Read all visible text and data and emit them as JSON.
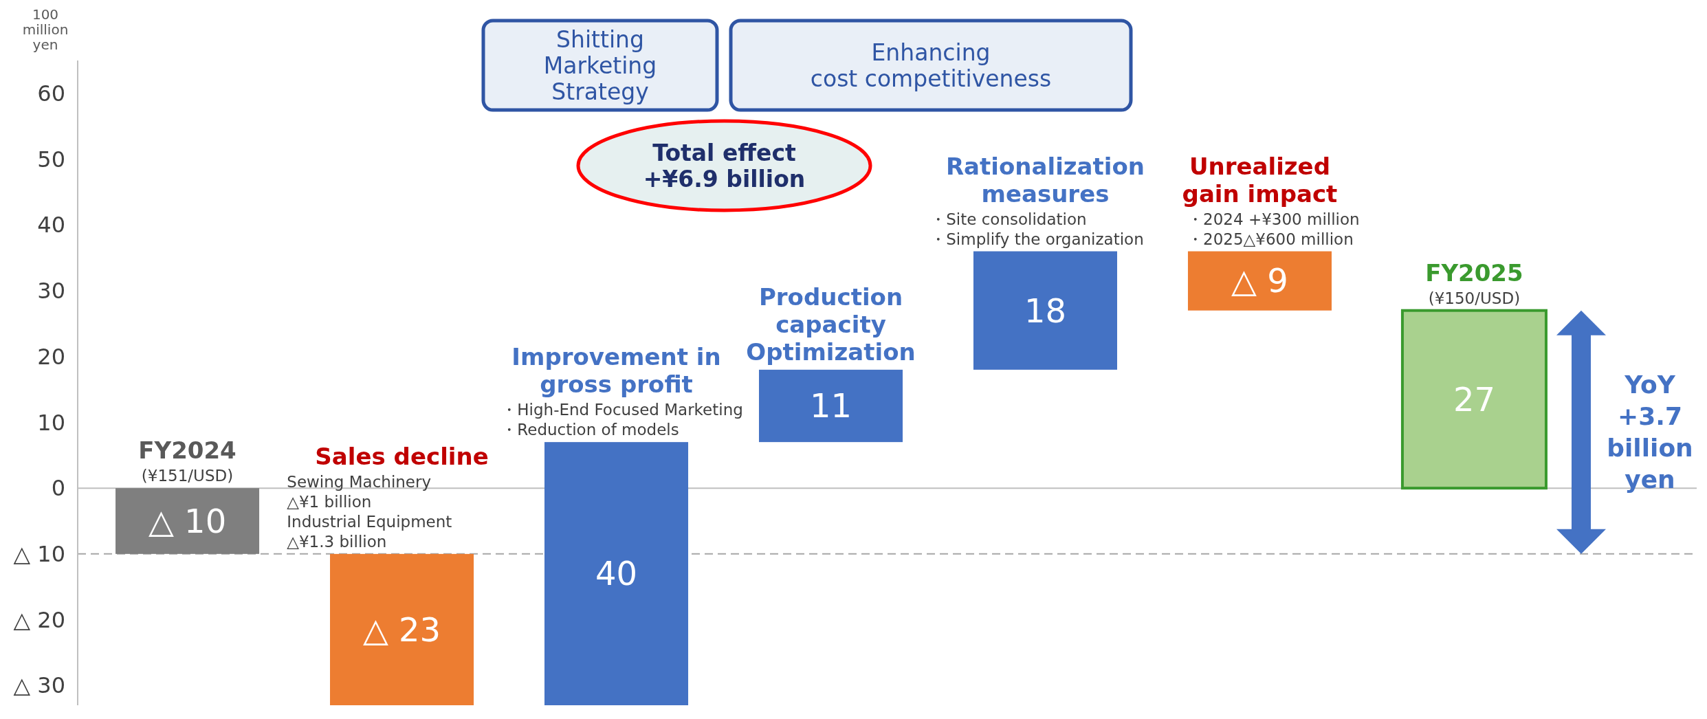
{
  "chart_data": {
    "type": "bar",
    "ylabel": "100 million yen",
    "categories": [
      "FY2024",
      "Sales decline",
      "Improvement in gross profit",
      "Production capacity Optimization",
      "Rationalization measures",
      "Unrealized gain impact",
      "FY2025"
    ],
    "values": [
      -10,
      -23,
      40,
      11,
      18,
      -9,
      27
    ],
    "base": [
      0,
      -10,
      -33,
      7,
      18,
      36,
      0
    ],
    "colors": [
      "#7f7f7f",
      "#ed7d31",
      "#4472c4",
      "#4472c4",
      "#4472c4",
      "#ed7d31",
      "#a9d18e"
    ],
    "value_labels": [
      "△ 10",
      "△ 23",
      "40",
      "11",
      "18",
      "△ 9",
      "27"
    ],
    "ylim": [
      -33,
      65
    ],
    "yticks": [
      {
        "value": -30,
        "label": "△ 30"
      },
      {
        "value": -20,
        "label": "△ 20"
      },
      {
        "value": -10,
        "label": "△ 10"
      },
      0,
      10,
      20,
      30,
      40,
      50,
      60
    ],
    "ref_lines": [
      {
        "axis": "y",
        "value": 0,
        "color": "#bfbfbf",
        "line_style": "solid"
      },
      {
        "axis": "y",
        "value": -10,
        "color": "#a6a6a6",
        "line_style": "dashed"
      }
    ],
    "annotations": [
      {
        "text": "(¥151/USD)",
        "x": "FY2024",
        "y": 0
      },
      {
        "text": "Sewing Machinery\n△¥1 billion\nIndustrial Equipment\n△¥1.3 billion",
        "x": "Sales decline",
        "y": -10
      },
      {
        "text": "・High-End Focused Marketing\n・Reduction of models",
        "x": "Improvement in gross profit",
        "y": 7
      },
      {
        "text": "・Site consolidation\n・Simplify the organization",
        "x": "Rationalization measures",
        "y": 36
      },
      {
        "text": "・2024 +¥300 million\n・2025△¥600 million",
        "x": "Unrealized gain impact",
        "y": 36
      },
      {
        "text": "(¥150/USD)",
        "x": "FY2025",
        "y": 27
      },
      "Shitting\nMarketing\nStrategy",
      "Enhancing\ncost competitiveness",
      "Total effect\n+¥6.9 billion",
      "YoY\n+3.7\nbillion\nyen"
    ],
    "tick_labels": true
  }
}
